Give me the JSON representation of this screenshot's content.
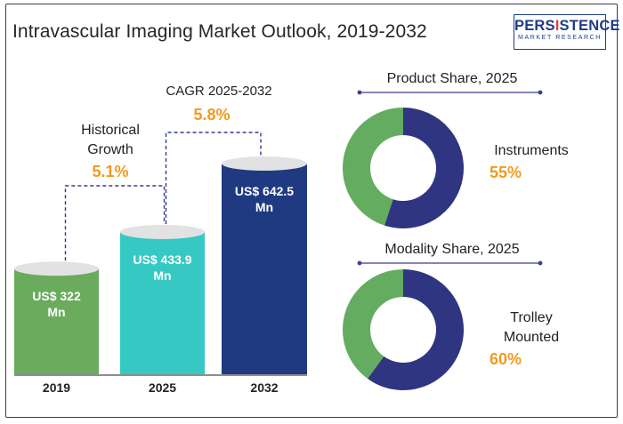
{
  "title": "Intravascular Imaging Market Outlook, 2019-2032",
  "logo": {
    "main_pre": "PERS",
    "main_accent": "I",
    "main_post": "STENCE",
    "sub": "MARKET RESEARCH"
  },
  "colors": {
    "bar_2019": "#6aab5e",
    "bar_2025": "#36c9c3",
    "bar_2032": "#203a82",
    "cap": "#e2e2e2",
    "accent": "#f29a1c",
    "donut_main": "#2f3581",
    "donut_other": "#64ac60",
    "dashed": "#303a8f"
  },
  "chart_data": [
    {
      "type": "bar",
      "categories": [
        "2019",
        "2025",
        "2032"
      ],
      "values": [
        322,
        433.9,
        642.5
      ],
      "value_labels": [
        "US$ 322 Mn",
        "US$ 433.9 Mn",
        "US$ 642.5 Mn"
      ],
      "annotations": [
        {
          "label": "Historical Growth",
          "value": "5.1%"
        },
        {
          "label": "CAGR 2025-2032",
          "value": "5.8%"
        }
      ]
    },
    {
      "type": "pie",
      "title": "Product Share, 2025",
      "segments": [
        {
          "label": "Instruments",
          "value": 55
        },
        {
          "label": "",
          "value": 45
        }
      ],
      "highlight_label": "Instruments",
      "highlight_value": "55%"
    },
    {
      "type": "pie",
      "title": "Modality Share, 2025",
      "segments": [
        {
          "label": "Trolley Mounted",
          "value": 60
        },
        {
          "label": "",
          "value": 40
        }
      ],
      "highlight_label": "Trolley Mounted",
      "highlight_value": "60%"
    }
  ]
}
